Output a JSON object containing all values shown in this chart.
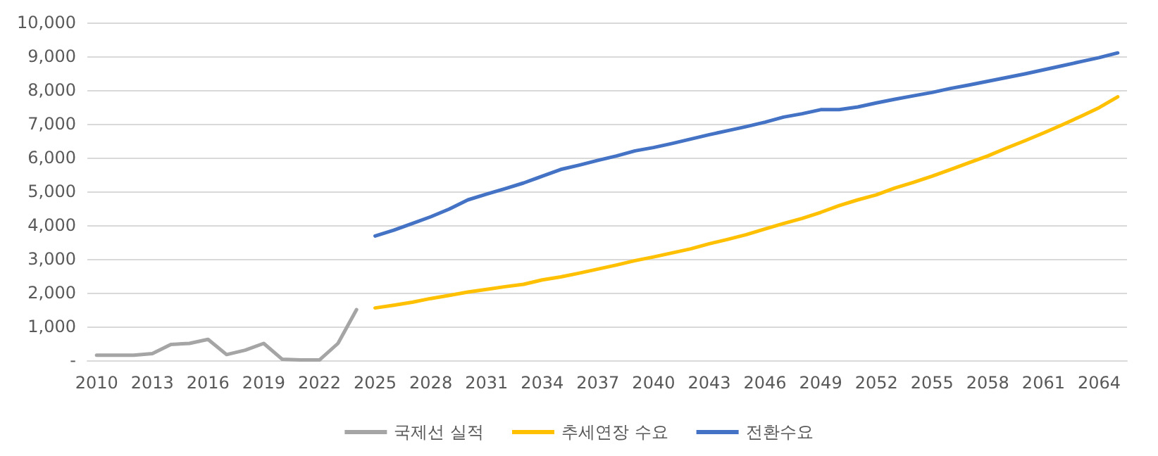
{
  "chart_data": {
    "type": "line",
    "categories": [
      "2010",
      null,
      null,
      "2013",
      null,
      null,
      "2016",
      null,
      null,
      "2019",
      null,
      null,
      "2022",
      null,
      null,
      "2025",
      null,
      null,
      "2028",
      null,
      null,
      "2031",
      null,
      null,
      "2034",
      null,
      null,
      "2037",
      null,
      null,
      "2040",
      null,
      null,
      "2043",
      null,
      null,
      "2046",
      null,
      null,
      "2049",
      null,
      null,
      "2052",
      null,
      null,
      "2055",
      null,
      null,
      "2058",
      null,
      null,
      "2061",
      null,
      null,
      "2064",
      null
    ],
    "series": [
      {
        "name": "국제선 실적",
        "color": "#a5a5a5",
        "values": [
          150,
          150,
          150,
          200,
          470,
          500,
          620,
          170,
          300,
          500,
          30,
          10,
          10,
          500,
          1500,
          null,
          null,
          null,
          null,
          null,
          null,
          null,
          null,
          null,
          null,
          null,
          null,
          null,
          null,
          null,
          null,
          null,
          null,
          null,
          null,
          null,
          null,
          null,
          null,
          null,
          null,
          null,
          null,
          null,
          null,
          null,
          null,
          null,
          null,
          null,
          null,
          null,
          null,
          null,
          null,
          null
        ]
      },
      {
        "name": "추세연장 수요",
        "color": "#ffc000",
        "values": [
          null,
          null,
          null,
          null,
          null,
          null,
          null,
          null,
          null,
          null,
          null,
          null,
          null,
          null,
          null,
          1550,
          1630,
          1720,
          1830,
          1920,
          2020,
          2100,
          2180,
          2250,
          2380,
          2470,
          2580,
          2700,
          2820,
          2950,
          3060,
          3180,
          3300,
          3450,
          3580,
          3720,
          3890,
          4050,
          4200,
          4380,
          4580,
          4750,
          4900,
          5100,
          5270,
          5450,
          5650,
          5850,
          6050,
          6280,
          6500,
          6730,
          6970,
          7220,
          7480,
          7800
        ]
      },
      {
        "name": "전환수요",
        "color": "#4472c4",
        "values": [
          null,
          null,
          null,
          null,
          null,
          null,
          null,
          null,
          null,
          null,
          null,
          null,
          null,
          null,
          null,
          3680,
          3850,
          4050,
          4250,
          4480,
          4750,
          4920,
          5080,
          5250,
          5450,
          5650,
          5780,
          5920,
          6050,
          6200,
          6300,
          6420,
          6550,
          6680,
          6800,
          6920,
          7050,
          7200,
          7300,
          7420,
          7420,
          7500,
          7620,
          7730,
          7830,
          7930,
          8050,
          8150,
          8260,
          8370,
          8480,
          8600,
          8720,
          8840,
          8960,
          9100
        ]
      }
    ],
    "ylim": [
      0,
      10000
    ],
    "yticks": [
      {
        "value": 0,
        "label": "-"
      },
      {
        "value": 1000,
        "label": "1,000"
      },
      {
        "value": 2000,
        "label": "2,000"
      },
      {
        "value": 3000,
        "label": "3,000"
      },
      {
        "value": 4000,
        "label": "4,000"
      },
      {
        "value": 5000,
        "label": "5,000"
      },
      {
        "value": 6000,
        "label": "6,000"
      },
      {
        "value": 7000,
        "label": "7,000"
      },
      {
        "value": 8000,
        "label": "8,000"
      },
      {
        "value": 9000,
        "label": "9,000"
      },
      {
        "value": 10000,
        "label": "10,000"
      }
    ],
    "grid": "y",
    "legend": "bottom",
    "marker": "none",
    "line_style": "solid"
  }
}
